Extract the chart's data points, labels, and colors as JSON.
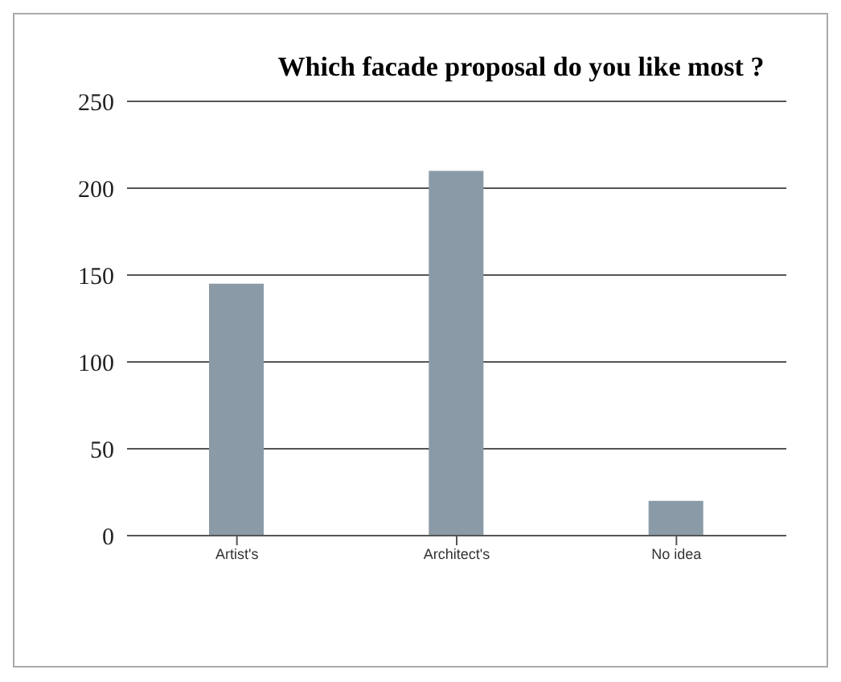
{
  "chart_data": {
    "type": "bar",
    "title": "Which facade proposal do you like most ?",
    "categories": [
      "Artist's",
      "Architect's",
      "No idea"
    ],
    "values": [
      145,
      210,
      20
    ],
    "color": "#8a9aa6",
    "ylim": [
      0,
      250
    ],
    "yticks": [
      0,
      50,
      100,
      150,
      200,
      250
    ],
    "grid": "y"
  }
}
